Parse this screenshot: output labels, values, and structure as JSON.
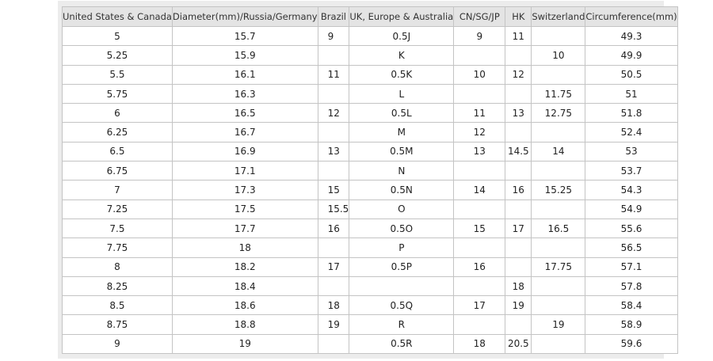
{
  "table": {
    "header": [
      "United States & Canada",
      "Diameter(mm)/Russia/Germany",
      "Brazil",
      "UK, Europe & Australia",
      "CN/SG/JP",
      "HK",
      "Switzerland",
      "Circumference(mm)"
    ],
    "rows": [
      [
        "5",
        "15.7",
        "9",
        "0.5J",
        "9",
        "11",
        null,
        "49.3"
      ],
      [
        "5.25",
        "15.9",
        null,
        "K",
        null,
        null,
        "10",
        "49.9"
      ],
      [
        "5.5",
        "16.1",
        "11",
        "0.5K",
        "10",
        "12",
        null,
        "50.5"
      ],
      [
        "5.75",
        "16.3",
        null,
        "L",
        null,
        null,
        "11.75",
        "51"
      ],
      [
        "6",
        "16.5",
        "12",
        "0.5L",
        "11",
        "13",
        "12.75",
        "51.8"
      ],
      [
        "6.25",
        "16.7",
        null,
        "M",
        "12",
        null,
        null,
        "52.4"
      ],
      [
        "6.5",
        "16.9",
        "13",
        "0.5M",
        "13",
        "14.5",
        "14",
        "53"
      ],
      [
        "6.75",
        "17.1",
        null,
        "N",
        null,
        null,
        null,
        "53.7"
      ],
      [
        "7",
        "17.3",
        "15",
        "0.5N",
        "14",
        "16",
        "15.25",
        "54.3"
      ],
      [
        "7.25",
        "17.5",
        "15.5",
        "O",
        null,
        null,
        null,
        "54.9"
      ],
      [
        "7.5",
        "17.7",
        "16",
        "0.5O",
        "15",
        "17",
        "16.5",
        "55.6"
      ],
      [
        "7.75",
        "18",
        null,
        "P",
        null,
        null,
        null,
        "56.5"
      ],
      [
        "8",
        "18.2",
        "17",
        "0.5P",
        "16",
        null,
        "17.75",
        "57.1"
      ],
      [
        "8.25",
        "18.4",
        null,
        null,
        null,
        "18",
        null,
        "57.8"
      ],
      [
        "8.5",
        "18.6",
        "18",
        "0.5Q",
        "17",
        "19",
        null,
        "58.4"
      ],
      [
        "8.75",
        "18.8",
        "19",
        "R",
        null,
        null,
        "19",
        "58.9"
      ],
      [
        "9",
        "19",
        null,
        "0.5R",
        "18",
        "20.5",
        null,
        "59.6"
      ]
    ]
  }
}
